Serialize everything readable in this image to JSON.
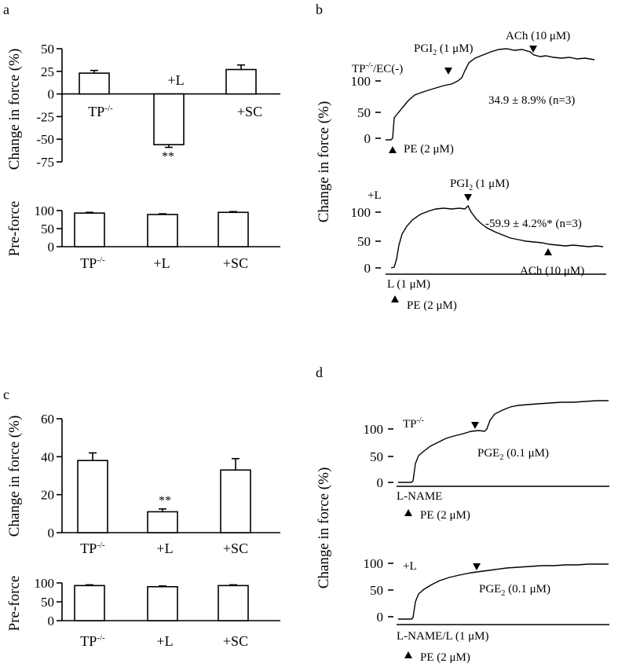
{
  "chart_data": [
    {
      "panel": "a",
      "type": "bar",
      "ylabel": "Change in force (%)",
      "ylim": [
        -75,
        50
      ],
      "yticks": [
        "50",
        "25",
        "0",
        "-25",
        "-50",
        "-75"
      ],
      "categories": [
        "TP-/-",
        "+L",
        "+SC"
      ],
      "values": [
        23,
        -56,
        27
      ],
      "errors": [
        3,
        3,
        5
      ],
      "annotations": [
        "**"
      ]
    },
    {
      "panel": "a",
      "type": "bar",
      "ylabel": "Pre-force",
      "ylim": [
        0,
        100
      ],
      "yticks": [
        "100",
        "50",
        "0"
      ],
      "categories": [
        "TP-/-",
        "+L",
        "+SC"
      ],
      "values": [
        93,
        89,
        95
      ],
      "errors": [
        2,
        2,
        2
      ]
    },
    {
      "panel": "b",
      "type": "line",
      "ylabel": "Change in force (%)",
      "yticks": [
        "100",
        "50",
        "0"
      ],
      "label": "TP-/-/EC(-)",
      "annotations": [
        "PGI2 (1 μM)",
        "ACh (10 μM)",
        "34.9 ± 8.9% (n=3)",
        "PE (2 μM)"
      ]
    },
    {
      "panel": "b",
      "type": "line",
      "yticks": [
        "100",
        "50",
        "0"
      ],
      "label": "+L",
      "annotations": [
        "PGI2 (1 μM)",
        "-59.9 ± 4.2%* (n=3)",
        "ACh (10 μM)",
        "L (1 μM)",
        "PE (2 μM)"
      ]
    },
    {
      "panel": "c",
      "type": "bar",
      "ylabel": "Change in force (%)",
      "ylim": [
        0,
        60
      ],
      "yticks": [
        "60",
        "40",
        "20",
        "0"
      ],
      "categories": [
        "TP-/-",
        "+L",
        "+SC"
      ],
      "values": [
        38,
        11,
        33
      ],
      "errors": [
        4,
        1.5,
        6
      ],
      "annotations": [
        "**"
      ]
    },
    {
      "panel": "c",
      "type": "bar",
      "ylabel": "Pre-force",
      "ylim": [
        0,
        100
      ],
      "yticks": [
        "100",
        "50",
        "0"
      ],
      "categories": [
        "TP-/-",
        "+L",
        "+SC"
      ],
      "values": [
        93,
        90,
        93
      ],
      "errors": [
        2,
        2,
        2
      ]
    },
    {
      "panel": "d",
      "type": "line",
      "ylabel": "Change in force (%)",
      "yticks": [
        "100",
        "50",
        "0"
      ],
      "label": "TP-/-",
      "annotations": [
        "PGE2 (0.1 μM)",
        "L-NAME",
        "PE (2 μM)"
      ]
    },
    {
      "panel": "d",
      "type": "line",
      "yticks": [
        "100",
        "50",
        "0"
      ],
      "label": "+L",
      "annotations": [
        "PGE2 (0.1 μM)",
        "L-NAME/L (1 μM)",
        "PE (2 μM)"
      ]
    }
  ],
  "panel_letters": [
    "a",
    "b",
    "c",
    "d"
  ],
  "asterisks": "**",
  "tp_base": "TP",
  "tp_sup": "-/-",
  "plus_l": "+L",
  "plus_sc": "+SC",
  "ylabel_change": "Change in force (%)",
  "ylabel_preforce": "Pre-force",
  "b_top": {
    "label_base": "TP",
    "label_sup": "-/-",
    "label_rest": "/EC(-)",
    "pgi2": "PGI",
    "pgi2_sub": "2",
    "pgi2_rest": " (1 μM)",
    "ach": "ACh (10 μM)",
    "result": "34.9 ± 8.9% (n=3)",
    "pe": "PE (2 μM)"
  },
  "b_bottom": {
    "label": "+L",
    "pgi2": "PGI",
    "pgi2_sub": "2",
    "pgi2_rest": " (1 μM)",
    "result": "-59.9 ± 4.2%* (n=3)",
    "ach": "ACh (10 μM)",
    "l": "L (1 μM)",
    "pe": "PE (2 μM)"
  },
  "d_top": {
    "label_base": "TP",
    "label_sup": "-/-",
    "pge2": "PGE",
    "pge2_sub": "2",
    "pge2_rest": " (0.1 μM)",
    "lname": "L-NAME",
    "pe": "PE (2 μM)"
  },
  "d_bottom": {
    "label": "+L",
    "pge2": "PGE",
    "pge2_sub": "2",
    "pge2_rest": " (0.1 μM)",
    "lname": "L-NAME/L (1 μM)",
    "pe": "PE (2 μM)"
  }
}
